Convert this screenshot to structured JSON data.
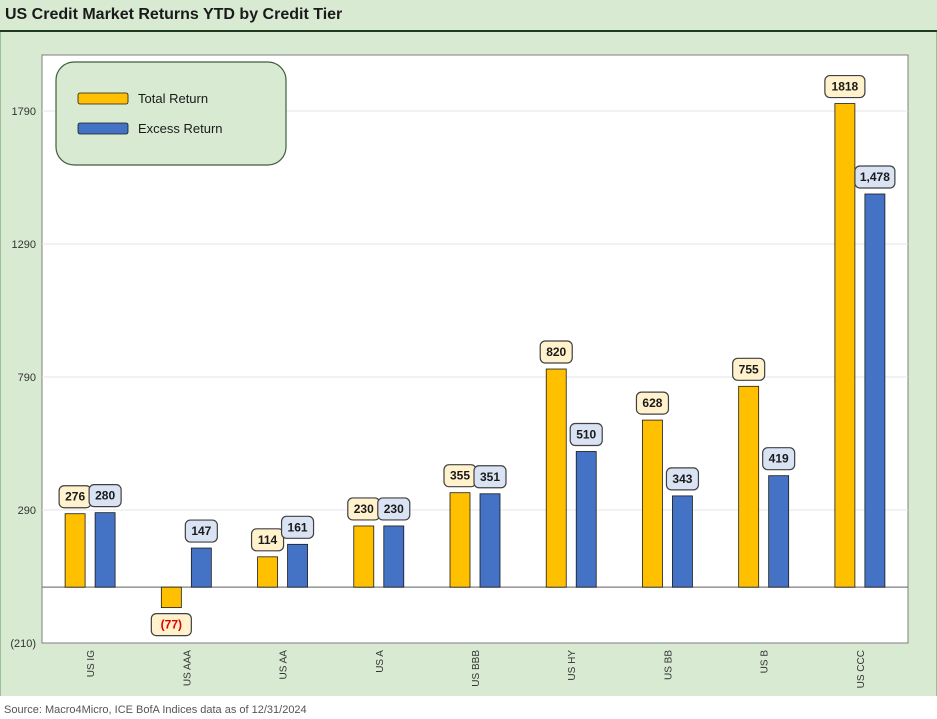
{
  "title": "US Credit Market Returns YTD by Credit Tier",
  "source": "Source: Macro4Micro, ICE BofA Indices     data as of 12/31/2024",
  "colors": {
    "total": "#ffc000",
    "excess": "#4472c4",
    "panel": "#d9ead3",
    "plot": "#ffffff"
  },
  "chart_data": {
    "type": "bar",
    "categories": [
      "US IG",
      "US AAA",
      "US AA",
      "US A",
      "US BBB",
      "US HY",
      "US BB",
      "US B",
      "US CCC"
    ],
    "series": [
      {
        "name": "Total Return",
        "values": [
          276,
          -77,
          114,
          230,
          355,
          820,
          628,
          755,
          1818
        ],
        "labels": [
          "276",
          "(77)",
          "114",
          "230",
          "355",
          "820",
          "628",
          "755",
          "1818"
        ]
      },
      {
        "name": "Excess Return",
        "values": [
          280,
          147,
          161,
          230,
          351,
          510,
          343,
          419,
          1478
        ],
        "labels": [
          "280",
          "147",
          "161",
          "230",
          "351",
          "510",
          "343",
          "419",
          "1,478"
        ]
      }
    ],
    "yticks": [
      1790,
      1290,
      790,
      290,
      -210
    ],
    "ytick_labels": [
      "1790",
      "1290",
      "790",
      "290",
      "(210)"
    ],
    "ylim": [
      -210,
      1990
    ],
    "grid": true,
    "legend_position": "top-left"
  }
}
